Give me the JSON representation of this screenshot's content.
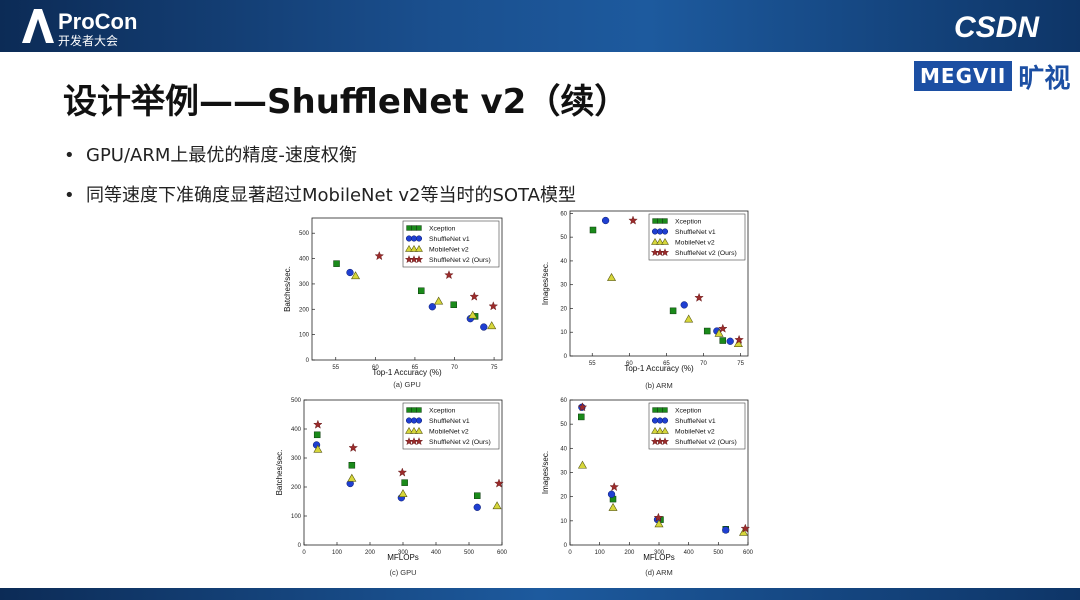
{
  "brand": {
    "procon_main": "ProCon",
    "procon_sub": "开发者大会",
    "csdn": "CSDN",
    "megvii": "MEGVII",
    "megvii_cn": "旷视"
  },
  "slide": {
    "title": "设计举例——ShuffleNet v2（续）",
    "bullets": [
      "GPU/ARM上最优的精度-速度权衡",
      "同等速度下准确度显著超过MobileNet v2等当时的SOTA模型"
    ]
  },
  "legend_series": [
    "Xception",
    "ShuffleNet v1",
    "MobileNet v2",
    "ShuffleNet v2 (Ours)"
  ],
  "colors": {
    "Xception": "#1a8a1a",
    "ShuffleNet v1": "#1f3fd1",
    "MobileNet v2": "#d6d63a",
    "ShuffleNet v2 (Ours)": "#9b2b2b"
  },
  "chart_data": [
    {
      "type": "scatter",
      "caption": "(a) GPU",
      "xlabel": "Top-1 Accuracy (%)",
      "ylabel": "Batches/sec.",
      "xlim": [
        52,
        76
      ],
      "ylim": [
        0,
        560
      ],
      "xticks": [
        55,
        60,
        65,
        70,
        75
      ],
      "yticks": [
        0,
        100,
        200,
        300,
        400,
        500
      ],
      "legend": "top-right",
      "series": [
        {
          "name": "Xception",
          "points": [
            [
              55.1,
              380
            ],
            [
              65.8,
              273
            ],
            [
              69.9,
              218
            ],
            [
              72.6,
              172
            ]
          ]
        },
        {
          "name": "ShuffleNet v1",
          "points": [
            [
              56.8,
              345
            ],
            [
              67.2,
              210
            ],
            [
              72.0,
              163
            ],
            [
              73.7,
              130
            ]
          ]
        },
        {
          "name": "MobileNet v2",
          "points": [
            [
              57.5,
              332
            ],
            [
              68.0,
              232
            ],
            [
              72.3,
              177
            ],
            [
              74.7,
              135
            ]
          ]
        },
        {
          "name": "ShuffleNet v2 (Ours)",
          "points": [
            [
              60.5,
              410
            ],
            [
              69.3,
              335
            ],
            [
              72.5,
              250
            ],
            [
              74.9,
              212
            ]
          ]
        }
      ]
    },
    {
      "type": "scatter",
      "caption": "(b) ARM",
      "xlabel": "Top-1 Accuracy (%)",
      "ylabel": "Images/sec.",
      "xlim": [
        52,
        76
      ],
      "ylim": [
        0,
        61
      ],
      "xticks": [
        55,
        60,
        65,
        70,
        75
      ],
      "yticks": [
        0,
        10,
        20,
        30,
        40,
        50,
        60
      ],
      "legend": "top-right",
      "series": [
        {
          "name": "Xception",
          "points": [
            [
              55.1,
              53
            ],
            [
              65.9,
              19
            ],
            [
              70.5,
              10.5
            ],
            [
              72.6,
              6.5
            ]
          ]
        },
        {
          "name": "ShuffleNet v1",
          "points": [
            [
              56.8,
              57
            ],
            [
              67.4,
              21.5
            ],
            [
              71.8,
              10.5
            ],
            [
              73.6,
              6.2
            ]
          ]
        },
        {
          "name": "MobileNet v2",
          "points": [
            [
              57.6,
              33
            ],
            [
              68.0,
              15.5
            ],
            [
              72.1,
              9.5
            ],
            [
              74.7,
              5.2
            ]
          ]
        },
        {
          "name": "ShuffleNet v2 (Ours)",
          "points": [
            [
              60.5,
              57
            ],
            [
              69.4,
              24.5
            ],
            [
              72.6,
              11.5
            ],
            [
              74.8,
              6.8
            ]
          ]
        }
      ]
    },
    {
      "type": "scatter",
      "caption": "(c) GPU",
      "xlabel": "MFLOPs",
      "ylabel": "Batches/sec.",
      "xlim": [
        0,
        600
      ],
      "ylim": [
        0,
        500
      ],
      "xticks": [
        0,
        100,
        200,
        300,
        400,
        500,
        600
      ],
      "yticks": [
        0,
        100,
        200,
        300,
        400,
        500
      ],
      "legend": "top-right",
      "series": [
        {
          "name": "Xception",
          "points": [
            [
              40,
              380
            ],
            [
              145,
              275
            ],
            [
              305,
              215
            ],
            [
              525,
              170
            ]
          ]
        },
        {
          "name": "ShuffleNet v1",
          "points": [
            [
              38,
              345
            ],
            [
              140,
              212
            ],
            [
              295,
              163
            ],
            [
              525,
              130
            ]
          ]
        },
        {
          "name": "MobileNet v2",
          "points": [
            [
              42,
              330
            ],
            [
              145,
              230
            ],
            [
              300,
              177
            ],
            [
              585,
              135
            ]
          ]
        },
        {
          "name": "ShuffleNet v2 (Ours)",
          "points": [
            [
              42,
              415
            ],
            [
              149,
              335
            ],
            [
              298,
              250
            ],
            [
              591,
              212
            ]
          ]
        }
      ]
    },
    {
      "type": "scatter",
      "caption": "(d) ARM",
      "xlabel": "MFLOPs",
      "ylabel": "Images/sec.",
      "xlim": [
        0,
        600
      ],
      "ylim": [
        0,
        60
      ],
      "xticks": [
        0,
        100,
        200,
        300,
        400,
        500,
        600
      ],
      "yticks": [
        0,
        10,
        20,
        30,
        40,
        50,
        60
      ],
      "legend": "top-right",
      "series": [
        {
          "name": "Xception",
          "points": [
            [
              38,
              53
            ],
            [
              145,
              19
            ],
            [
              305,
              10.5
            ],
            [
              525,
              6.5
            ]
          ]
        },
        {
          "name": "ShuffleNet v1",
          "points": [
            [
              40,
              57
            ],
            [
              140,
              21
            ],
            [
              295,
              10.5
            ],
            [
              525,
              6.2
            ]
          ]
        },
        {
          "name": "MobileNet v2",
          "points": [
            [
              42,
              33
            ],
            [
              145,
              15.5
            ],
            [
              300,
              8.7
            ],
            [
              585,
              5.2
            ]
          ]
        },
        {
          "name": "ShuffleNet v2 (Ours)",
          "points": [
            [
              42,
              57
            ],
            [
              149,
              24
            ],
            [
              298,
              11.3
            ],
            [
              591,
              6.8
            ]
          ]
        }
      ]
    }
  ]
}
